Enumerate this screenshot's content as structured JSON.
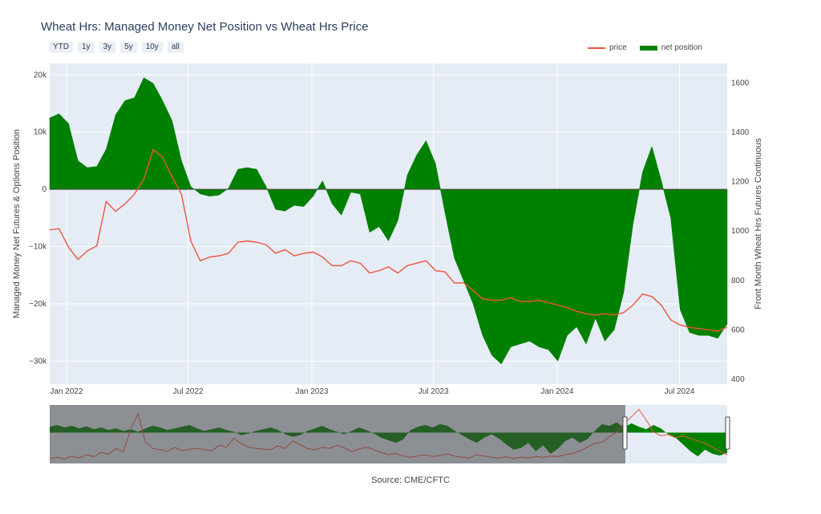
{
  "chart_data": {
    "type": "area",
    "title": "Wheat Hrs: Managed Money Net Position vs Wheat Hrs Price",
    "y_left_label": "Managed Money Net Futures & Options Position",
    "y_right_label": "Front Month Wheat Hrs Futures Continuous",
    "y_left_range": [
      -34000,
      22000
    ],
    "y_right_range": [
      380,
      1680
    ],
    "y_left_ticks": [
      {
        "v": 20000,
        "label": "20k"
      },
      {
        "v": 10000,
        "label": "10k"
      },
      {
        "v": 0,
        "label": "0"
      },
      {
        "v": -10000,
        "label": "−10k"
      },
      {
        "v": -20000,
        "label": "−20k"
      },
      {
        "v": -30000,
        "label": "−30k"
      }
    ],
    "y_right_ticks": [
      {
        "v": 1600,
        "label": "1600"
      },
      {
        "v": 1400,
        "label": "1400"
      },
      {
        "v": 1200,
        "label": "1200"
      },
      {
        "v": 1000,
        "label": "1000"
      },
      {
        "v": 800,
        "label": "800"
      },
      {
        "v": 600,
        "label": "600"
      },
      {
        "v": 400,
        "label": "400"
      }
    ],
    "x_range": [
      "2021-12-07",
      "2024-09-10"
    ],
    "x_ticks": [
      {
        "date": "2022-01-01",
        "label": "Jan 2022"
      },
      {
        "date": "2022-07-01",
        "label": "Jul 2022"
      },
      {
        "date": "2023-01-01",
        "label": "Jan 2023"
      },
      {
        "date": "2023-07-01",
        "label": "Jul 2023"
      },
      {
        "date": "2024-01-01",
        "label": "Jan 2024"
      },
      {
        "date": "2024-07-01",
        "label": "Jul 2024"
      }
    ],
    "grid": true,
    "legend_position": "top-right",
    "series": [
      {
        "name": "net position",
        "axis": "left",
        "color": "#008000",
        "points": [
          [
            "2021-12-07",
            12500
          ],
          [
            "2021-12-21",
            13200
          ],
          [
            "2022-01-04",
            11500
          ],
          [
            "2022-01-18",
            5000
          ],
          [
            "2022-02-01",
            3800
          ],
          [
            "2022-02-15",
            4000
          ],
          [
            "2022-03-01",
            7000
          ],
          [
            "2022-03-15",
            13000
          ],
          [
            "2022-03-29",
            15500
          ],
          [
            "2022-04-12",
            16000
          ],
          [
            "2022-04-26",
            19500
          ],
          [
            "2022-05-10",
            18500
          ],
          [
            "2022-05-24",
            15500
          ],
          [
            "2022-06-07",
            12000
          ],
          [
            "2022-06-21",
            5000
          ],
          [
            "2022-07-05",
            500
          ],
          [
            "2022-07-19",
            -800
          ],
          [
            "2022-08-02",
            -1200
          ],
          [
            "2022-08-16",
            -1000
          ],
          [
            "2022-08-30",
            200
          ],
          [
            "2022-09-13",
            3500
          ],
          [
            "2022-09-27",
            3800
          ],
          [
            "2022-10-11",
            3500
          ],
          [
            "2022-10-25",
            500
          ],
          [
            "2022-11-08",
            -3500
          ],
          [
            "2022-11-22",
            -3800
          ],
          [
            "2022-12-06",
            -2800
          ],
          [
            "2022-12-20",
            -3000
          ],
          [
            "2023-01-03",
            -1200
          ],
          [
            "2023-01-17",
            1500
          ],
          [
            "2023-01-31",
            -2500
          ],
          [
            "2023-02-14",
            -4500
          ],
          [
            "2023-02-28",
            -500
          ],
          [
            "2023-03-14",
            -800
          ],
          [
            "2023-03-28",
            -7500
          ],
          [
            "2023-04-11",
            -6500
          ],
          [
            "2023-04-25",
            -9000
          ],
          [
            "2023-05-09",
            -5500
          ],
          [
            "2023-05-23",
            2500
          ],
          [
            "2023-06-06",
            6000
          ],
          [
            "2023-06-20",
            8500
          ],
          [
            "2023-07-04",
            4500
          ],
          [
            "2023-07-18",
            -4000
          ],
          [
            "2023-08-01",
            -12000
          ],
          [
            "2023-08-15",
            -16000
          ],
          [
            "2023-08-29",
            -20000
          ],
          [
            "2023-09-12",
            -25500
          ],
          [
            "2023-09-26",
            -29000
          ],
          [
            "2023-10-10",
            -30500
          ],
          [
            "2023-10-24",
            -27500
          ],
          [
            "2023-11-07",
            -27000
          ],
          [
            "2023-11-21",
            -26500
          ],
          [
            "2023-12-05",
            -27500
          ],
          [
            "2023-12-19",
            -28000
          ],
          [
            "2024-01-02",
            -30000
          ],
          [
            "2024-01-16",
            -25500
          ],
          [
            "2024-01-30",
            -24000
          ],
          [
            "2024-02-13",
            -27000
          ],
          [
            "2024-02-27",
            -22500
          ],
          [
            "2024-03-12",
            -26500
          ],
          [
            "2024-03-26",
            -24500
          ],
          [
            "2024-04-09",
            -18000
          ],
          [
            "2024-04-23",
            -6000
          ],
          [
            "2024-05-07",
            3000
          ],
          [
            "2024-05-21",
            7500
          ],
          [
            "2024-06-04",
            1500
          ],
          [
            "2024-06-18",
            -5000
          ],
          [
            "2024-07-02",
            -21000
          ],
          [
            "2024-07-16",
            -25000
          ],
          [
            "2024-07-30",
            -25500
          ],
          [
            "2024-08-13",
            -25500
          ],
          [
            "2024-08-27",
            -26000
          ],
          [
            "2024-09-10",
            -23500
          ]
        ]
      },
      {
        "name": "price",
        "axis": "right",
        "color": "#ef553b",
        "points": [
          [
            "2021-12-07",
            1005
          ],
          [
            "2021-12-21",
            1010
          ],
          [
            "2022-01-04",
            935
          ],
          [
            "2022-01-18",
            885
          ],
          [
            "2022-02-01",
            920
          ],
          [
            "2022-02-15",
            940
          ],
          [
            "2022-03-01",
            1120
          ],
          [
            "2022-03-15",
            1080
          ],
          [
            "2022-03-29",
            1110
          ],
          [
            "2022-04-12",
            1150
          ],
          [
            "2022-04-26",
            1210
          ],
          [
            "2022-05-10",
            1330
          ],
          [
            "2022-05-24",
            1300
          ],
          [
            "2022-06-07",
            1220
          ],
          [
            "2022-06-21",
            1150
          ],
          [
            "2022-07-05",
            960
          ],
          [
            "2022-07-19",
            880
          ],
          [
            "2022-08-02",
            895
          ],
          [
            "2022-08-16",
            900
          ],
          [
            "2022-08-30",
            910
          ],
          [
            "2022-09-13",
            955
          ],
          [
            "2022-09-27",
            960
          ],
          [
            "2022-10-11",
            955
          ],
          [
            "2022-10-25",
            945
          ],
          [
            "2022-11-08",
            910
          ],
          [
            "2022-11-22",
            925
          ],
          [
            "2022-12-06",
            900
          ],
          [
            "2022-12-20",
            910
          ],
          [
            "2023-01-03",
            915
          ],
          [
            "2023-01-17",
            895
          ],
          [
            "2023-01-31",
            860
          ],
          [
            "2023-02-14",
            860
          ],
          [
            "2023-02-28",
            880
          ],
          [
            "2023-03-14",
            870
          ],
          [
            "2023-03-28",
            830
          ],
          [
            "2023-04-11",
            840
          ],
          [
            "2023-04-25",
            855
          ],
          [
            "2023-05-09",
            830
          ],
          [
            "2023-05-23",
            860
          ],
          [
            "2023-06-06",
            870
          ],
          [
            "2023-06-20",
            880
          ],
          [
            "2023-07-04",
            840
          ],
          [
            "2023-07-18",
            835
          ],
          [
            "2023-08-01",
            790
          ],
          [
            "2023-08-15",
            790
          ],
          [
            "2023-08-29",
            760
          ],
          [
            "2023-09-12",
            725
          ],
          [
            "2023-09-26",
            720
          ],
          [
            "2023-10-10",
            720
          ],
          [
            "2023-10-24",
            730
          ],
          [
            "2023-11-07",
            715
          ],
          [
            "2023-11-21",
            715
          ],
          [
            "2023-12-05",
            720
          ],
          [
            "2023-12-19",
            710
          ],
          [
            "2024-01-02",
            700
          ],
          [
            "2024-01-16",
            690
          ],
          [
            "2024-01-30",
            675
          ],
          [
            "2024-02-13",
            665
          ],
          [
            "2024-02-27",
            660
          ],
          [
            "2024-03-12",
            665
          ],
          [
            "2024-03-26",
            660
          ],
          [
            "2024-04-09",
            670
          ],
          [
            "2024-04-23",
            700
          ],
          [
            "2024-05-07",
            745
          ],
          [
            "2024-05-21",
            735
          ],
          [
            "2024-06-04",
            700
          ],
          [
            "2024-06-18",
            640
          ],
          [
            "2024-07-02",
            620
          ],
          [
            "2024-07-16",
            610
          ],
          [
            "2024-07-30",
            605
          ],
          [
            "2024-08-13",
            600
          ],
          [
            "2024-08-27",
            595
          ],
          [
            "2024-09-10",
            610
          ]
        ]
      }
    ],
    "range_buttons": [
      "YTD",
      "1y",
      "3y",
      "5y",
      "10y",
      "all"
    ],
    "rangeslider_overview": {
      "net_position": [
        7000,
        9000,
        6000,
        8000,
        5000,
        7500,
        4000,
        6000,
        3000,
        5000,
        2000,
        4000,
        1000,
        5000,
        8000,
        6000,
        3000,
        5000,
        7000,
        9000,
        5000,
        2000,
        4000,
        6000,
        3000,
        1000,
        -3000,
        -1000,
        2000,
        4000,
        6000,
        3000,
        -2000,
        -5000,
        -3000,
        2000,
        5000,
        8000,
        4000,
        1000,
        -2000,
        2000,
        6000,
        3000,
        -1000,
        -6000,
        -9000,
        -12000,
        -8000,
        3000,
        7000,
        9000,
        6000,
        10000,
        8000,
        2000,
        -3000,
        -8000,
        -12000,
        -6000,
        -2000,
        -7000,
        -14000,
        -20000,
        -18000,
        -12000,
        -22000,
        -15000,
        -25000,
        -19000,
        -10000,
        -6000,
        -12000,
        -8000,
        2000,
        10000,
        8000,
        12000,
        6000,
        11000,
        7000,
        4000,
        9000,
        5000,
        -2000,
        -6000,
        -14000,
        -22000,
        -28000,
        -20000,
        -25000,
        -27000,
        -24000
      ],
      "price": [
        540,
        560,
        530,
        580,
        550,
        600,
        570,
        640,
        610,
        700,
        650,
        1000,
        1250,
        800,
        700,
        680,
        650,
        720,
        660,
        690,
        700,
        680,
        660,
        750,
        720,
        860,
        780,
        720,
        700,
        690,
        680,
        740,
        700,
        820,
        760,
        700,
        680,
        720,
        700,
        750,
        710,
        650,
        690,
        720,
        680,
        640,
        600,
        620,
        580,
        560,
        580,
        600,
        570,
        590,
        610,
        580,
        560,
        550,
        600,
        580,
        560,
        545,
        570,
        540,
        560,
        550,
        570,
        560,
        580,
        570,
        600,
        620,
        660,
        720,
        780,
        800,
        880,
        960,
        1100,
        1200,
        1320,
        1150,
        960,
        900,
        920,
        870,
        900,
        860,
        820,
        780,
        720,
        660,
        600
      ]
    }
  },
  "source_label": "Source: CME/CFTC",
  "legend": {
    "price": "price",
    "net": "net position"
  }
}
